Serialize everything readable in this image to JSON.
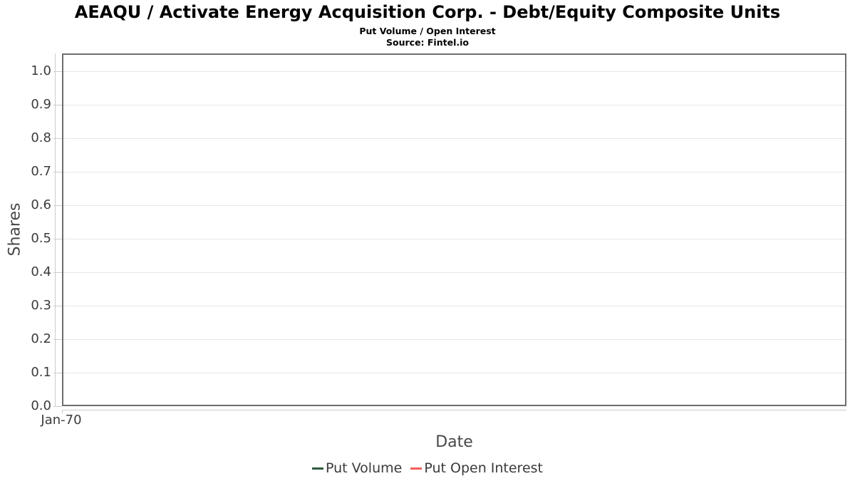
{
  "chart_data": {
    "type": "line",
    "title": "AEAQU / Activate Energy Acquisition Corp. - Debt/Equity Composite Units",
    "subtitle": "Put Volume / Open Interest",
    "source": "Source: Fintel.io",
    "xlabel": "Date",
    "ylabel": "Shares",
    "x_tick_labels": [
      "Jan-70"
    ],
    "y_tick_labels": [
      "0.0",
      "0.1",
      "0.2",
      "0.3",
      "0.4",
      "0.5",
      "0.6",
      "0.7",
      "0.8",
      "0.9",
      "1.0"
    ],
    "ylim": [
      0.0,
      1.053
    ],
    "grid": true,
    "legend_position": "bottom",
    "series": [
      {
        "name": "Put Volume",
        "color": "#2d5a3c",
        "x": [],
        "values": []
      },
      {
        "name": "Put Open Interest",
        "color": "#f4605c",
        "x": [],
        "values": []
      }
    ],
    "plot_is_empty": true
  },
  "colors": {
    "plot_border": "#6e6e6e",
    "gridline": "#e7e7e7",
    "axis_line": "#cccccc",
    "tick_label": "#3c3c3c",
    "axis_title": "#474747",
    "legend_text": "#3a3a3a"
  }
}
